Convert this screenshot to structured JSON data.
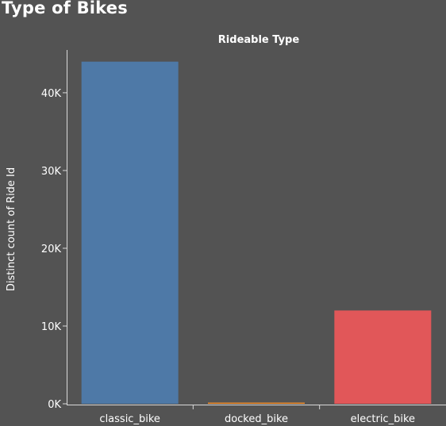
{
  "page": {
    "title": "Type of Bikes",
    "background": "#535353"
  },
  "chart_data": {
    "type": "bar",
    "title": "Rideable Type",
    "xlabel": "",
    "ylabel": "Distinct count of Ride Id",
    "categories": [
      "classic_bike",
      "docked_bike",
      "electric_bike"
    ],
    "values": [
      44000,
      120,
      12000
    ],
    "colors": [
      "#4e79a7",
      "#f28e2b",
      "#e15759"
    ],
    "ylim": [
      0,
      45500
    ],
    "yticks": [
      0,
      10000,
      20000,
      30000,
      40000
    ],
    "ytick_labels": [
      "0K",
      "10K",
      "20K",
      "30K",
      "40K"
    ],
    "grid": false,
    "legend": "none"
  }
}
